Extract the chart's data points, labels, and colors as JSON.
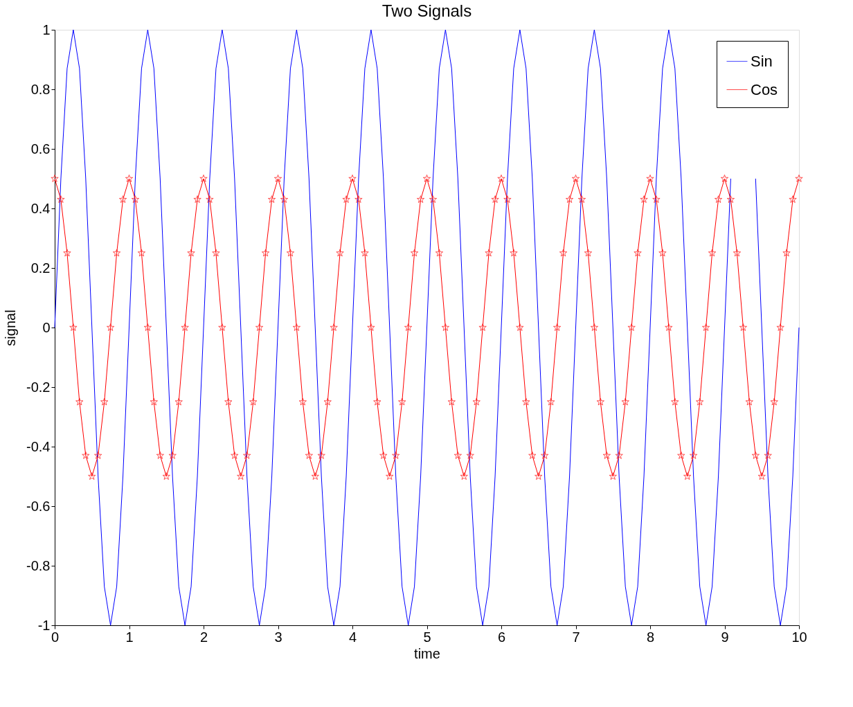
{
  "chart_data": {
    "type": "line",
    "title": "Two Signals",
    "xlabel": "time",
    "ylabel": "signal",
    "x": [
      0,
      0.083,
      0.167,
      0.25,
      0.333,
      0.417,
      0.5,
      0.583,
      0.667,
      0.75,
      0.833,
      0.917,
      1,
      1.083,
      1.167,
      1.25,
      1.333,
      1.417,
      1.5,
      1.583,
      1.667,
      1.75,
      1.833,
      1.917,
      2,
      2.083,
      2.167,
      2.25,
      2.333,
      2.417,
      2.5,
      2.583,
      2.667,
      2.75,
      2.833,
      2.917,
      3,
      3.083,
      3.167,
      3.25,
      3.333,
      3.417,
      3.5,
      3.583,
      3.667,
      3.75,
      3.833,
      3.917,
      4,
      4.083,
      4.167,
      4.25,
      4.333,
      4.417,
      4.5,
      4.583,
      4.667,
      4.75,
      4.833,
      4.917,
      5,
      5.083,
      5.167,
      5.25,
      5.333,
      5.417,
      5.5,
      5.583,
      5.667,
      5.75,
      5.833,
      5.917,
      6,
      6.083,
      6.167,
      6.25,
      6.333,
      6.417,
      6.5,
      6.583,
      6.667,
      6.75,
      6.833,
      6.917,
      7,
      7.083,
      7.167,
      7.25,
      7.333,
      7.417,
      7.5,
      7.583,
      7.667,
      7.75,
      7.833,
      7.917,
      8,
      8.083,
      8.167,
      8.25,
      8.333,
      8.417,
      8.5,
      8.583,
      8.667,
      8.75,
      8.833,
      8.917,
      9,
      9.083,
      9.167,
      9.25,
      9.333,
      9.417,
      9.5,
      9.583,
      9.667,
      9.75,
      9.833,
      9.917,
      10
    ],
    "series": [
      {
        "name": "Sin",
        "color": "#0000ff",
        "marker": "none",
        "values": [
          0,
          0.5,
          0.87,
          1,
          0.87,
          0.5,
          0,
          -0.5,
          -0.87,
          -1,
          -0.87,
          -0.5,
          0,
          0.5,
          0.87,
          1,
          0.87,
          0.5,
          0,
          -0.5,
          -0.87,
          -1,
          -0.87,
          -0.5,
          0,
          0.5,
          0.87,
          1,
          0.87,
          0.5,
          0,
          -0.5,
          -0.87,
          -1,
          -0.87,
          -0.5,
          0,
          0.5,
          0.87,
          1,
          0.87,
          0.5,
          0,
          -0.5,
          -0.87,
          -1,
          -0.87,
          -0.5,
          0,
          0.5,
          0.87,
          1,
          0.87,
          0.5,
          0,
          -0.5,
          -0.87,
          -1,
          -0.87,
          -0.5,
          0,
          0.5,
          0.87,
          1,
          0.87,
          0.5,
          0,
          -0.5,
          -0.87,
          -1,
          -0.87,
          -0.5,
          0,
          0.5,
          0.87,
          1,
          0.87,
          0.5,
          0,
          -0.5,
          -0.87,
          -1,
          -0.87,
          -0.5,
          0,
          0.5,
          0.87,
          1,
          0.87,
          0.5,
          0,
          -0.5,
          -0.87,
          -1,
          -0.87,
          -0.5,
          0,
          0.5,
          0.87,
          1,
          0.87,
          0.5,
          0,
          -0.5,
          -0.87,
          -1,
          -0.87,
          -0.5,
          0,
          0.5,
          null,
          null,
          null,
          0.5,
          0,
          -0.5,
          -0.87,
          -1,
          -0.87,
          -0.5,
          0
        ]
      },
      {
        "name": "Cos",
        "color": "#ff0000",
        "marker": "star",
        "values": [
          0.5,
          0.43,
          0.25,
          0,
          -0.25,
          -0.43,
          -0.5,
          -0.43,
          -0.25,
          0,
          0.25,
          0.43,
          0.5,
          0.43,
          0.25,
          0,
          -0.25,
          -0.43,
          -0.5,
          -0.43,
          -0.25,
          0,
          0.25,
          0.43,
          0.5,
          0.43,
          0.25,
          0,
          -0.25,
          -0.43,
          -0.5,
          -0.43,
          -0.25,
          0,
          0.25,
          0.43,
          0.5,
          0.43,
          0.25,
          0,
          -0.25,
          -0.43,
          -0.5,
          -0.43,
          -0.25,
          0,
          0.25,
          0.43,
          0.5,
          0.43,
          0.25,
          0,
          -0.25,
          -0.43,
          -0.5,
          -0.43,
          -0.25,
          0,
          0.25,
          0.43,
          0.5,
          0.43,
          0.25,
          0,
          -0.25,
          -0.43,
          -0.5,
          -0.43,
          -0.25,
          0,
          0.25,
          0.43,
          0.5,
          0.43,
          0.25,
          0,
          -0.25,
          -0.43,
          -0.5,
          -0.43,
          -0.25,
          0,
          0.25,
          0.43,
          0.5,
          0.43,
          0.25,
          0,
          -0.25,
          -0.43,
          -0.5,
          -0.43,
          -0.25,
          0,
          0.25,
          0.43,
          0.5,
          0.43,
          0.25,
          0,
          -0.25,
          -0.43,
          -0.5,
          -0.43,
          -0.25,
          0,
          0.25,
          0.43,
          0.5,
          0.43,
          0.25,
          0,
          -0.25,
          -0.43,
          -0.5,
          -0.43,
          -0.25,
          0,
          0.25,
          0.43,
          0.5
        ]
      }
    ],
    "xlim": [
      0,
      10
    ],
    "xticks": [
      0,
      1,
      2,
      3,
      4,
      5,
      6,
      7,
      8,
      9,
      10
    ],
    "ylim": [
      -1,
      1
    ],
    "yticks": [
      -1,
      -0.8,
      -0.6,
      -0.4,
      -0.2,
      0,
      0.2,
      0.4,
      0.6,
      0.8,
      1
    ],
    "grid": false,
    "legend": "top right",
    "line_style": "solid"
  }
}
